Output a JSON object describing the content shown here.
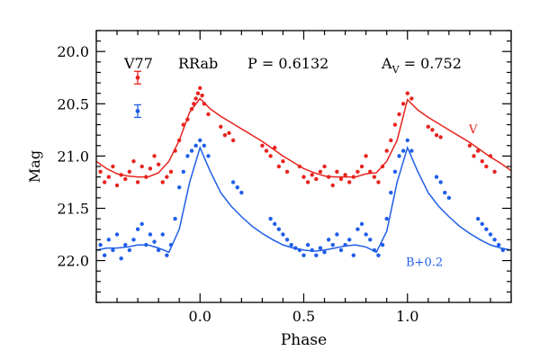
{
  "chart_data": {
    "type": "scatter",
    "header": {
      "star": "V77",
      "class": "RRab",
      "period_label": "P = 0.6132",
      "amp_prefix": "A",
      "amp_sub": "V",
      "amp_value": " = 0.752"
    },
    "xlabel": "Phase",
    "ylabel": "Mag",
    "xlim": [
      -0.5,
      1.5
    ],
    "ylim": [
      22.4,
      19.8
    ],
    "y_inverted": true,
    "grid": false,
    "x_ticks": [
      0.0,
      0.5,
      1.0
    ],
    "x_tick_labels": [
      "0.0",
      "0.5",
      "1.0"
    ],
    "y_ticks": [
      20.0,
      20.5,
      21.0,
      21.5,
      22.0
    ],
    "y_tick_labels": [
      "20.0",
      "20.5",
      "21.0",
      "21.5",
      "22.0"
    ],
    "colors": {
      "V": "#e8231e",
      "B": "#1f5ee8",
      "frame": "#000000"
    },
    "series": [
      {
        "name": "V",
        "label": "V",
        "color": "#e8231e",
        "fit_x": [
          -0.5,
          -0.45,
          -0.4,
          -0.35,
          -0.3,
          -0.25,
          -0.2,
          -0.15,
          -0.1,
          -0.05,
          0.0,
          0.05,
          0.1,
          0.15,
          0.2,
          0.25,
          0.3,
          0.35,
          0.4,
          0.45,
          0.5,
          0.55,
          0.6,
          0.65,
          0.7,
          0.75,
          0.8,
          0.85,
          0.9,
          0.95,
          1.0,
          1.05,
          1.1,
          1.15,
          1.2,
          1.25,
          1.3,
          1.35,
          1.4,
          1.45,
          1.5
        ],
        "fit_y": [
          21.05,
          21.12,
          21.17,
          21.19,
          21.2,
          21.2,
          21.16,
          21.05,
          20.85,
          20.58,
          20.45,
          20.55,
          20.62,
          20.68,
          20.74,
          20.8,
          20.86,
          20.93,
          21.0,
          21.06,
          21.12,
          21.16,
          21.19,
          21.2,
          21.2,
          21.2,
          21.17,
          21.16,
          21.05,
          20.85,
          20.46,
          20.56,
          20.63,
          20.69,
          20.75,
          20.81,
          20.87,
          20.94,
          21.01,
          21.07,
          21.14
        ],
        "points_x": [
          -0.48,
          -0.46,
          -0.44,
          -0.42,
          -0.4,
          -0.38,
          -0.36,
          -0.34,
          -0.32,
          -0.3,
          -0.28,
          -0.26,
          -0.24,
          -0.22,
          -0.2,
          -0.18,
          -0.16,
          -0.14,
          -0.12,
          -0.1,
          -0.08,
          -0.06,
          -0.04,
          -0.03,
          -0.02,
          -0.01,
          0.0,
          0.01,
          0.02,
          0.04,
          0.1,
          0.12,
          0.14,
          0.16,
          0.3,
          0.32,
          0.34,
          0.36,
          0.38,
          0.4,
          0.42,
          0.48,
          0.5,
          0.52,
          0.54,
          0.56,
          0.58,
          0.6,
          0.62,
          0.64,
          0.66,
          0.68,
          0.7,
          0.72,
          0.74,
          0.76,
          0.78,
          0.8,
          0.82,
          0.84,
          0.86,
          0.88,
          0.9,
          0.92,
          0.94,
          0.96,
          0.98,
          1.0,
          1.02,
          1.1,
          1.12,
          1.14,
          1.16,
          1.3,
          1.32,
          1.34,
          1.36,
          1.38,
          1.4,
          1.42
        ],
        "points_y": [
          21.15,
          21.25,
          21.2,
          21.1,
          21.28,
          21.18,
          21.22,
          21.15,
          21.05,
          21.25,
          21.1,
          21.2,
          21.12,
          21.0,
          21.08,
          21.25,
          21.2,
          21.15,
          20.95,
          20.85,
          20.7,
          20.65,
          20.55,
          20.5,
          20.45,
          20.4,
          20.35,
          20.42,
          20.5,
          20.6,
          20.72,
          20.8,
          20.78,
          20.85,
          20.9,
          20.95,
          21.0,
          20.92,
          21.1,
          21.05,
          21.15,
          21.1,
          21.2,
          21.25,
          21.18,
          21.22,
          21.15,
          21.1,
          21.2,
          21.28,
          21.15,
          21.22,
          21.18,
          21.25,
          21.2,
          21.15,
          21.1,
          21.0,
          21.15,
          21.2,
          21.25,
          21.1,
          20.95,
          20.85,
          20.7,
          20.6,
          20.5,
          20.4,
          20.45,
          20.72,
          20.75,
          20.8,
          20.82,
          20.9,
          21.0,
          20.95,
          21.05,
          21.1,
          21.0,
          21.15
        ]
      },
      {
        "name": "B",
        "label": "B+0.2",
        "color": "#1f5ee8",
        "fit_x": [
          -0.5,
          -0.45,
          -0.4,
          -0.35,
          -0.3,
          -0.25,
          -0.2,
          -0.15,
          -0.1,
          -0.05,
          0.0,
          0.05,
          0.1,
          0.15,
          0.2,
          0.25,
          0.3,
          0.35,
          0.4,
          0.45,
          0.5,
          0.55,
          0.6,
          0.65,
          0.7,
          0.75,
          0.8,
          0.85,
          0.9,
          0.95,
          1.0,
          1.05,
          1.1,
          1.15,
          1.2,
          1.25,
          1.3,
          1.35,
          1.4,
          1.45,
          1.5
        ],
        "fit_y": [
          21.9,
          21.88,
          21.88,
          21.87,
          21.85,
          21.85,
          21.88,
          21.92,
          21.7,
          21.25,
          20.92,
          21.15,
          21.35,
          21.48,
          21.58,
          21.67,
          21.74,
          21.8,
          21.85,
          21.88,
          21.9,
          21.91,
          21.9,
          21.88,
          21.86,
          21.85,
          21.87,
          21.92,
          21.72,
          21.25,
          20.92,
          21.15,
          21.35,
          21.48,
          21.58,
          21.67,
          21.74,
          21.8,
          21.85,
          21.88,
          21.9
        ],
        "points_x": [
          -0.48,
          -0.46,
          -0.44,
          -0.42,
          -0.4,
          -0.38,
          -0.36,
          -0.34,
          -0.32,
          -0.3,
          -0.28,
          -0.26,
          -0.24,
          -0.22,
          -0.2,
          -0.18,
          -0.16,
          -0.14,
          -0.12,
          -0.1,
          -0.08,
          -0.06,
          -0.04,
          -0.02,
          0.0,
          0.02,
          0.04,
          0.16,
          0.18,
          0.2,
          0.34,
          0.36,
          0.38,
          0.4,
          0.42,
          0.44,
          0.46,
          0.48,
          0.5,
          0.52,
          0.54,
          0.56,
          0.58,
          0.6,
          0.62,
          0.64,
          0.66,
          0.68,
          0.7,
          0.72,
          0.74,
          0.76,
          0.78,
          0.8,
          0.82,
          0.84,
          0.86,
          0.88,
          0.9,
          0.92,
          0.94,
          0.96,
          0.98,
          1.0,
          1.02,
          1.14,
          1.16,
          1.18,
          1.2,
          1.34,
          1.36,
          1.38,
          1.4,
          1.42,
          1.44,
          1.46
        ],
        "points_y": [
          21.85,
          21.95,
          21.8,
          21.9,
          21.75,
          21.98,
          21.85,
          21.9,
          21.8,
          21.7,
          21.65,
          21.85,
          21.75,
          21.82,
          21.9,
          21.75,
          21.95,
          21.85,
          21.6,
          21.3,
          21.15,
          21.0,
          20.95,
          20.9,
          20.85,
          20.9,
          21.0,
          21.25,
          21.3,
          21.35,
          21.6,
          21.65,
          21.7,
          21.75,
          21.8,
          21.85,
          21.88,
          21.9,
          21.95,
          21.85,
          21.9,
          21.95,
          21.88,
          21.92,
          21.8,
          21.85,
          21.75,
          21.9,
          21.85,
          21.8,
          21.95,
          21.7,
          21.65,
          21.75,
          21.8,
          21.9,
          21.95,
          21.85,
          21.6,
          21.35,
          21.15,
          21.0,
          20.95,
          20.85,
          20.95,
          21.2,
          21.25,
          21.35,
          21.4,
          21.6,
          21.65,
          21.7,
          21.75,
          21.8,
          21.85,
          21.9
        ]
      }
    ]
  }
}
